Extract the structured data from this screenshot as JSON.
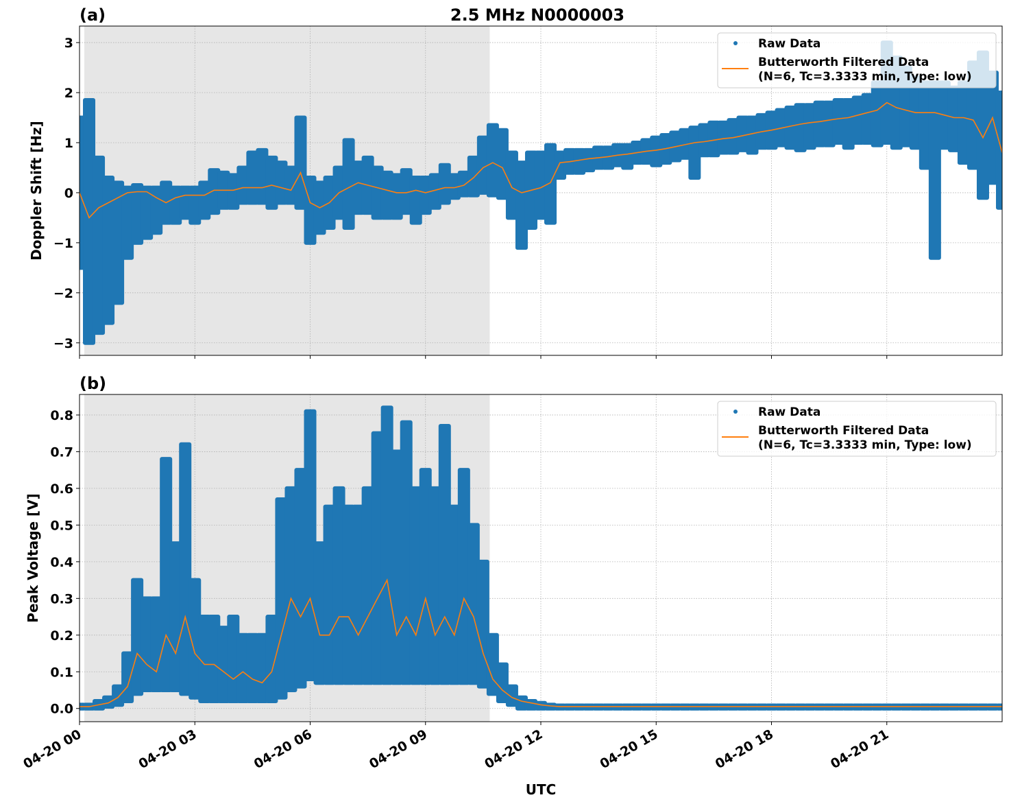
{
  "figure": {
    "title": "2.5 MHz N0000003",
    "xlabel": "UTC",
    "colors": {
      "raw": "#1f77b4",
      "filtered": "#ff7f0e",
      "shade": "#e6e6e6",
      "grid": "#b0b0b0"
    }
  },
  "chart_data": [
    {
      "type": "scatter",
      "panel_label": "(a)",
      "title": "2.5 MHz N0000003",
      "ylabel": "Doppler Shift [Hz]",
      "xlim_hours": [
        0,
        24
      ],
      "ylim": [
        -3.25,
        3.33
      ],
      "yticks": [
        -3,
        -2,
        -1,
        0,
        1,
        2,
        3
      ],
      "ytick_labels": [
        "−3",
        "−2",
        "−1",
        "0",
        "1",
        "2",
        "3"
      ],
      "xticks_hours": [
        0,
        3,
        6,
        9,
        12,
        15,
        18,
        21
      ],
      "xtick_labels": [
        "04-20 00",
        "04-20 03",
        "04-20 06",
        "04-20 09",
        "04-20 12",
        "04-20 15",
        "04-20 18",
        "04-20 21"
      ],
      "grid": true,
      "shaded_region_hours": [
        0.125,
        10.67
      ],
      "legend": {
        "placement": "top-right",
        "entries": [
          "Raw Data",
          "Butterworth Filtered Data",
          "(N=6, Tc=3.3333 min, Type: low)"
        ]
      },
      "x_hours": [
        0,
        0.25,
        0.5,
        0.75,
        1,
        1.25,
        1.5,
        1.75,
        2,
        2.25,
        2.5,
        2.75,
        3,
        3.25,
        3.5,
        3.75,
        4,
        4.25,
        4.5,
        4.75,
        5,
        5.25,
        5.5,
        5.75,
        6,
        6.25,
        6.5,
        6.75,
        7,
        7.25,
        7.5,
        7.75,
        8,
        8.25,
        8.5,
        8.75,
        9,
        9.25,
        9.5,
        9.75,
        10,
        10.25,
        10.5,
        10.75,
        11,
        11.25,
        11.5,
        11.75,
        12,
        12.25,
        12.5,
        12.75,
        13,
        13.25,
        13.5,
        13.75,
        14,
        14.25,
        14.5,
        14.75,
        15,
        15.25,
        15.5,
        15.75,
        16,
        16.25,
        16.5,
        16.75,
        17,
        17.25,
        17.5,
        17.75,
        18,
        18.25,
        18.5,
        18.75,
        19,
        19.25,
        19.5,
        19.75,
        20,
        20.25,
        20.5,
        20.75,
        21,
        21.25,
        21.5,
        21.75,
        22,
        22.25,
        22.5,
        22.75,
        23,
        23.25,
        23.5,
        23.75,
        24
      ],
      "filtered": [
        0,
        -0.5,
        -0.3,
        -0.2,
        -0.1,
        0,
        0.02,
        0.02,
        -0.1,
        -0.2,
        -0.1,
        -0.05,
        -0.05,
        -0.05,
        0.05,
        0.05,
        0.05,
        0.1,
        0.1,
        0.1,
        0.15,
        0.1,
        0.05,
        0.4,
        -0.2,
        -0.3,
        -0.2,
        0,
        0.1,
        0.2,
        0.15,
        0.1,
        0.05,
        0,
        0,
        0.05,
        0,
        0.05,
        0.1,
        0.1,
        0.15,
        0.3,
        0.5,
        0.6,
        0.5,
        0.1,
        0,
        0.05,
        0.1,
        0.2,
        0.6,
        0.62,
        0.65,
        0.68,
        0.7,
        0.72,
        0.75,
        0.77,
        0.8,
        0.83,
        0.85,
        0.88,
        0.92,
        0.96,
        1.0,
        1.02,
        1.05,
        1.08,
        1.1,
        1.14,
        1.18,
        1.22,
        1.25,
        1.29,
        1.33,
        1.37,
        1.4,
        1.42,
        1.45,
        1.48,
        1.5,
        1.55,
        1.6,
        1.65,
        1.8,
        1.7,
        1.65,
        1.6,
        1.6,
        1.6,
        1.55,
        1.5,
        1.5,
        1.45,
        1.1,
        1.5,
        0.8
      ],
      "raw_min": [
        -1.5,
        -3.0,
        -2.8,
        -2.6,
        -2.2,
        -1.3,
        -1.0,
        -0.9,
        -0.8,
        -0.6,
        -0.6,
        -0.5,
        -0.6,
        -0.5,
        -0.4,
        -0.3,
        -0.3,
        -0.2,
        -0.2,
        -0.2,
        -0.3,
        -0.2,
        -0.2,
        -0.3,
        -1.0,
        -0.8,
        -0.7,
        -0.5,
        -0.7,
        -0.4,
        -0.4,
        -0.5,
        -0.5,
        -0.5,
        -0.4,
        -0.6,
        -0.4,
        -0.3,
        -0.2,
        -0.1,
        -0.05,
        -0.05,
        0,
        -0.05,
        -0.1,
        -0.5,
        -1.1,
        -0.7,
        -0.5,
        -0.6,
        0.3,
        0.4,
        0.4,
        0.45,
        0.5,
        0.5,
        0.55,
        0.5,
        0.6,
        0.6,
        0.55,
        0.6,
        0.65,
        0.7,
        0.3,
        0.75,
        0.75,
        0.8,
        0.8,
        0.85,
        0.8,
        0.9,
        0.9,
        0.95,
        0.9,
        0.85,
        0.9,
        0.95,
        0.95,
        1.0,
        0.9,
        1.0,
        1.0,
        0.95,
        1.0,
        0.9,
        0.95,
        0.9,
        0.5,
        -1.3,
        0.9,
        0.85,
        0.6,
        0.5,
        -0.1,
        0.2,
        -0.3
      ],
      "raw_max": [
        1.5,
        1.85,
        0.7,
        0.3,
        0.2,
        0.1,
        0.15,
        0.1,
        0.1,
        0.2,
        0.1,
        0.1,
        0.1,
        0.2,
        0.45,
        0.4,
        0.35,
        0.5,
        0.8,
        0.85,
        0.7,
        0.6,
        0.5,
        1.5,
        0.3,
        0.2,
        0.3,
        0.5,
        1.05,
        0.6,
        0.7,
        0.5,
        0.4,
        0.35,
        0.45,
        0.3,
        0.3,
        0.35,
        0.55,
        0.35,
        0.4,
        0.7,
        1.1,
        1.35,
        1.25,
        0.8,
        0.6,
        0.8,
        0.8,
        0.95,
        0.8,
        0.85,
        0.85,
        0.85,
        0.9,
        0.9,
        0.95,
        0.95,
        1.0,
        1.05,
        1.1,
        1.15,
        1.2,
        1.25,
        1.3,
        1.35,
        1.4,
        1.4,
        1.45,
        1.5,
        1.5,
        1.55,
        1.6,
        1.65,
        1.7,
        1.75,
        1.75,
        1.8,
        1.8,
        1.85,
        1.85,
        1.9,
        1.95,
        2.2,
        3.0,
        2.7,
        2.5,
        2.3,
        2.2,
        2.2,
        2.2,
        2.1,
        2.2,
        2.6,
        2.8,
        2.4,
        2.0
      ]
    },
    {
      "type": "scatter",
      "panel_label": "(b)",
      "ylabel": "Peak Voltage [V]",
      "xlim_hours": [
        0,
        24
      ],
      "ylim": [
        -0.036,
        0.856
      ],
      "yticks": [
        0,
        0.1,
        0.2,
        0.3,
        0.4,
        0.5,
        0.6,
        0.7,
        0.8
      ],
      "ytick_labels": [
        "0.0",
        "0.1",
        "0.2",
        "0.3",
        "0.4",
        "0.5",
        "0.6",
        "0.7",
        "0.8"
      ],
      "xticks_hours": [
        0,
        3,
        6,
        9,
        12,
        15,
        18,
        21
      ],
      "xtick_labels": [
        "04-20 00",
        "04-20 03",
        "04-20 06",
        "04-20 09",
        "04-20 12",
        "04-20 15",
        "04-20 18",
        "04-20 21"
      ],
      "grid": true,
      "shaded_region_hours": [
        0.125,
        10.67
      ],
      "legend": {
        "placement": "top-right",
        "entries": [
          "Raw Data",
          "Butterworth Filtered Data",
          "(N=6, Tc=3.3333 min, Type: low)"
        ]
      },
      "x_hours": [
        0,
        0.25,
        0.5,
        0.75,
        1,
        1.25,
        1.5,
        1.75,
        2,
        2.25,
        2.5,
        2.75,
        3,
        3.25,
        3.5,
        3.75,
        4,
        4.25,
        4.5,
        4.75,
        5,
        5.25,
        5.5,
        5.75,
        6,
        6.25,
        6.5,
        6.75,
        7,
        7.25,
        7.5,
        7.75,
        8,
        8.25,
        8.5,
        8.75,
        9,
        9.25,
        9.5,
        9.75,
        10,
        10.25,
        10.5,
        10.75,
        11,
        11.25,
        11.5,
        11.75,
        12,
        12.25,
        12.5,
        12.75,
        13,
        13.25,
        13.5,
        13.75,
        14,
        14.25,
        14.5,
        14.75,
        15,
        15.25,
        15.5,
        15.75,
        16,
        16.25,
        16.5,
        16.75,
        17,
        17.25,
        17.5,
        17.75,
        18,
        18.25,
        18.5,
        18.75,
        19,
        19.25,
        19.5,
        19.75,
        20,
        20.25,
        20.5,
        20.75,
        21,
        21.25,
        21.5,
        21.75,
        22,
        22.25,
        22.5,
        22.75,
        23,
        23.25,
        23.5,
        23.75,
        24
      ],
      "filtered": [
        0.005,
        0.005,
        0.01,
        0.015,
        0.03,
        0.06,
        0.15,
        0.12,
        0.1,
        0.2,
        0.15,
        0.25,
        0.15,
        0.12,
        0.12,
        0.1,
        0.08,
        0.1,
        0.08,
        0.07,
        0.1,
        0.2,
        0.3,
        0.25,
        0.3,
        0.2,
        0.2,
        0.25,
        0.25,
        0.2,
        0.25,
        0.3,
        0.35,
        0.2,
        0.25,
        0.2,
        0.3,
        0.2,
        0.25,
        0.2,
        0.3,
        0.25,
        0.15,
        0.08,
        0.05,
        0.03,
        0.02,
        0.015,
        0.01,
        0.007,
        0.005,
        0.005,
        0.005,
        0.005,
        0.005,
        0.005,
        0.005,
        0.005,
        0.005,
        0.005,
        0.005,
        0.005,
        0.005,
        0.005,
        0.005,
        0.005,
        0.005,
        0.005,
        0.005,
        0.005,
        0.005,
        0.005,
        0.005,
        0.005,
        0.005,
        0.005,
        0.005,
        0.005,
        0.005,
        0.005,
        0.005,
        0.005,
        0.005,
        0.005,
        0.005,
        0.005,
        0.005,
        0.005,
        0.005,
        0.005,
        0.005,
        0.005,
        0.005,
        0.005,
        0.005,
        0.005,
        0.005
      ],
      "raw_min": [
        0,
        0,
        0,
        0.005,
        0.01,
        0.02,
        0.04,
        0.05,
        0.05,
        0.05,
        0.05,
        0.04,
        0.03,
        0.02,
        0.02,
        0.02,
        0.02,
        0.02,
        0.02,
        0.02,
        0.02,
        0.03,
        0.05,
        0.06,
        0.08,
        0.07,
        0.07,
        0.07,
        0.07,
        0.07,
        0.07,
        0.07,
        0.07,
        0.07,
        0.07,
        0.07,
        0.07,
        0.07,
        0.07,
        0.07,
        0.07,
        0.07,
        0.06,
        0.04,
        0.02,
        0.01,
        0,
        0,
        0,
        0,
        0,
        0,
        0,
        0,
        0,
        0,
        0,
        0,
        0,
        0,
        0,
        0,
        0,
        0,
        0,
        0,
        0,
        0,
        0,
        0,
        0,
        0,
        0,
        0,
        0,
        0,
        0,
        0,
        0,
        0,
        0,
        0,
        0,
        0,
        0,
        0,
        0,
        0,
        0,
        0,
        0,
        0,
        0,
        0,
        0,
        0,
        0
      ],
      "raw_max": [
        0.01,
        0.01,
        0.02,
        0.03,
        0.06,
        0.15,
        0.35,
        0.3,
        0.3,
        0.68,
        0.45,
        0.72,
        0.35,
        0.25,
        0.25,
        0.22,
        0.25,
        0.2,
        0.2,
        0.2,
        0.25,
        0.57,
        0.6,
        0.65,
        0.81,
        0.45,
        0.55,
        0.6,
        0.55,
        0.55,
        0.6,
        0.75,
        0.82,
        0.7,
        0.78,
        0.6,
        0.65,
        0.6,
        0.77,
        0.55,
        0.65,
        0.5,
        0.4,
        0.2,
        0.12,
        0.06,
        0.03,
        0.02,
        0.015,
        0.01,
        0.008,
        0.008,
        0.008,
        0.008,
        0.008,
        0.008,
        0.008,
        0.008,
        0.008,
        0.008,
        0.008,
        0.008,
        0.008,
        0.008,
        0.008,
        0.008,
        0.008,
        0.008,
        0.008,
        0.008,
        0.008,
        0.008,
        0.008,
        0.008,
        0.008,
        0.008,
        0.008,
        0.008,
        0.008,
        0.008,
        0.008,
        0.008,
        0.008,
        0.008,
        0.008,
        0.008,
        0.008,
        0.008,
        0.008,
        0.008,
        0.008,
        0.008,
        0.008,
        0.008,
        0.008,
        0.008,
        0.008
      ]
    }
  ]
}
